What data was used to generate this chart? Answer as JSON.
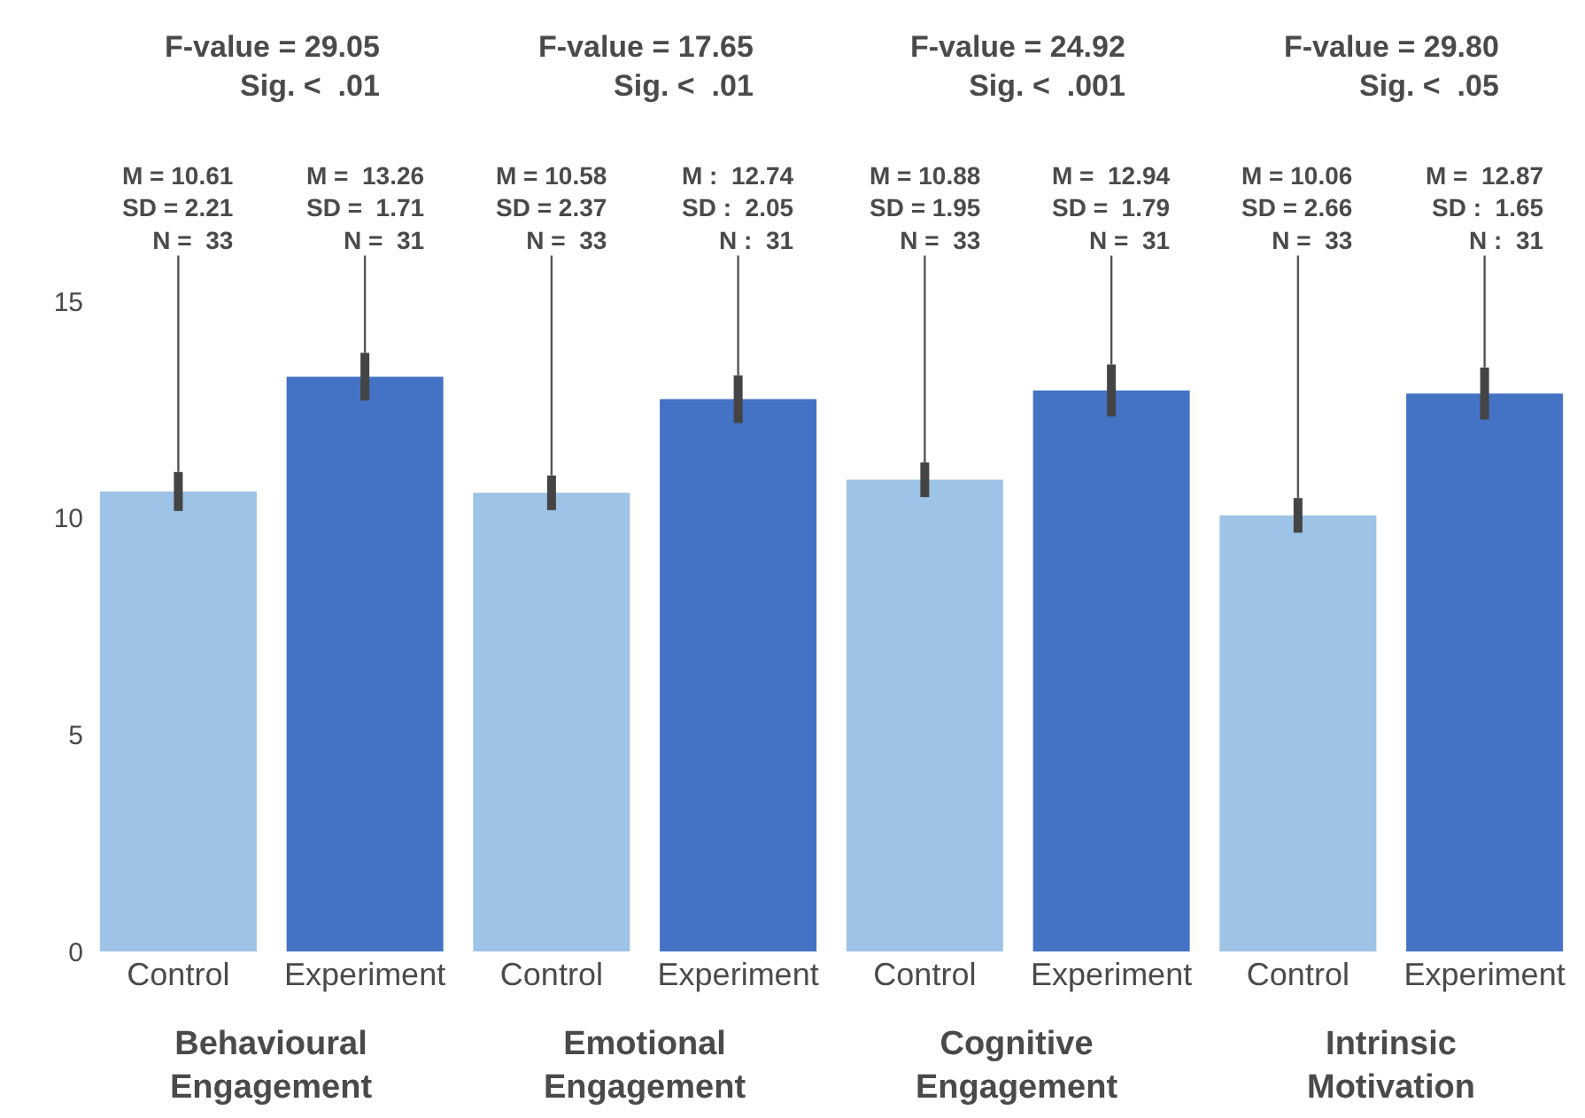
{
  "chart_data": {
    "type": "bar",
    "categories": [
      "Control",
      "Experiment",
      "Control",
      "Experiment",
      "Control",
      "Experiment",
      "Control",
      "Experiment"
    ],
    "values": [
      10.61,
      13.26,
      10.58,
      12.74,
      10.88,
      12.94,
      10.06,
      12.87
    ],
    "colors": [
      "#9dc3e6",
      "#4472c4",
      "#9dc3e6",
      "#4472c4",
      "#9dc3e6",
      "#4472c4",
      "#9dc3e6",
      "#4472c4"
    ],
    "errors": [
      0.45,
      0.55,
      0.4,
      0.55,
      0.4,
      0.6,
      0.4,
      0.6
    ],
    "ylim": [
      0,
      15
    ],
    "yticks": [
      0,
      5,
      10,
      15
    ],
    "annotations": [
      "F-value = 29.05\nSig. <  .01",
      "F-value = 17.65\nSig. <  .01",
      "F-value = 24.92\nSig. <  .001",
      "F-value = 29.80\nSig. <  .05",
      {
        "text": "M = 10.61\nSD = 2.21\nN =  33",
        "y": 11.06
      },
      {
        "text": "M =  13.26\nSD =  1.71\nN =  31",
        "y": 13.81
      },
      {
        "text": "M = 10.58\nSD = 2.37\nN =  33",
        "y": 10.98
      },
      {
        "text": "M :  12.74\nSD :  2.05\nN :  31",
        "y": 13.29
      },
      {
        "text": "M = 10.88\nSD = 1.95\nN =  33",
        "y": 11.28
      },
      {
        "text": "M =  12.94\nSD =  1.79\nN =  31",
        "y": 13.54
      },
      {
        "text": "M = 10.06\nSD = 2.66\nN =  33",
        "y": 10.46
      },
      {
        "text": "M =  12.87\nSD :  1.65\nN :  31",
        "y": 13.47
      },
      "Behavioural\nEngagement",
      "Emotional\nEngagement",
      "Cognitive\nEngagement",
      "Intrinsic\nMotivation"
    ]
  }
}
